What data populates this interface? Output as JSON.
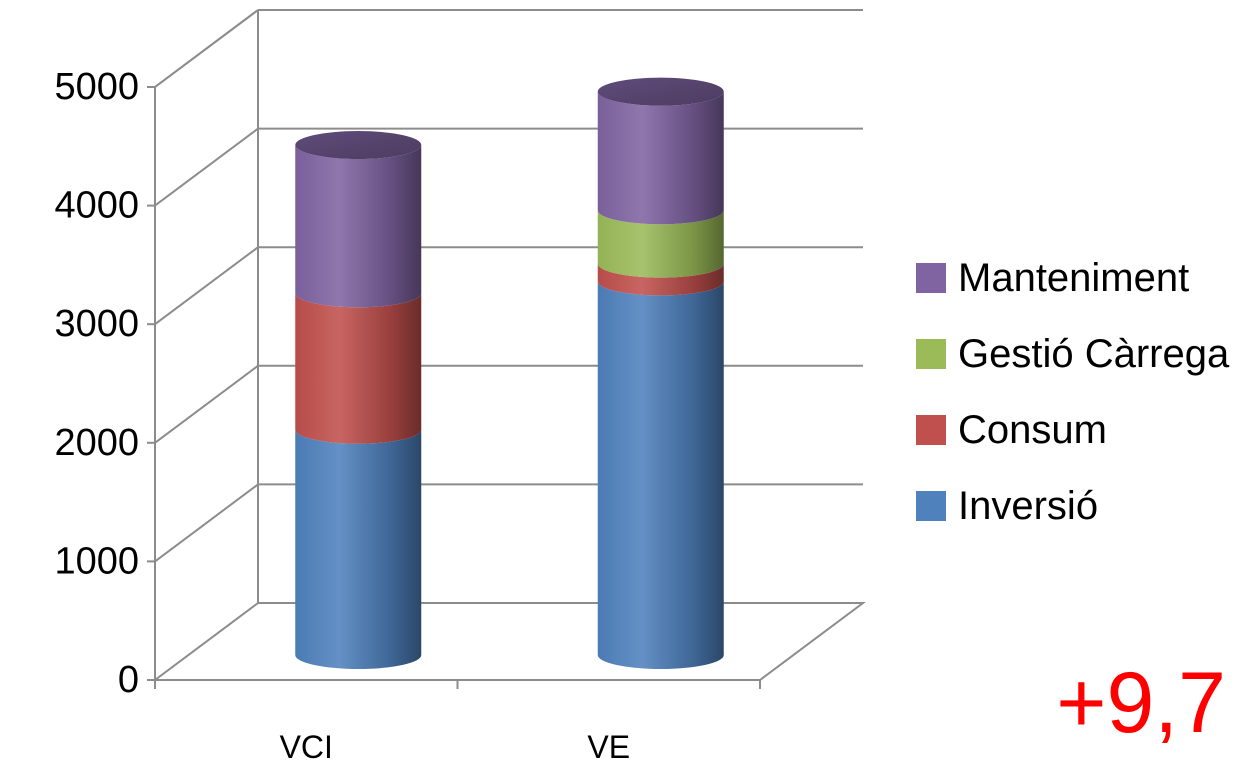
{
  "chart_data": {
    "type": "bar",
    "stacked": true,
    "style": "3d-cylinder",
    "categories": [
      "VCI",
      "VE"
    ],
    "series": [
      {
        "name": "Inversió",
        "values": [
          1900,
          3150
        ],
        "color": "#4F81BD"
      },
      {
        "name": "Consum",
        "values": [
          1150,
          150
        ],
        "color": "#C0504D"
      },
      {
        "name": "Gestió Càrrega",
        "values": [
          0,
          450
        ],
        "color": "#9BBB59"
      },
      {
        "name": "Manteniment",
        "values": [
          1250,
          1000
        ],
        "color": "#8064A2"
      }
    ],
    "ylim": [
      0,
      5000
    ],
    "yticks": [
      "0",
      "1000",
      "2000",
      "3000",
      "4000",
      "5000"
    ],
    "grid": true,
    "legend_position": "right",
    "legend_order": [
      "Manteniment",
      "Gestió Càrrega",
      "Consum",
      "Inversió"
    ],
    "annotation": {
      "text": "+9,7",
      "color": "#FF0000"
    }
  }
}
